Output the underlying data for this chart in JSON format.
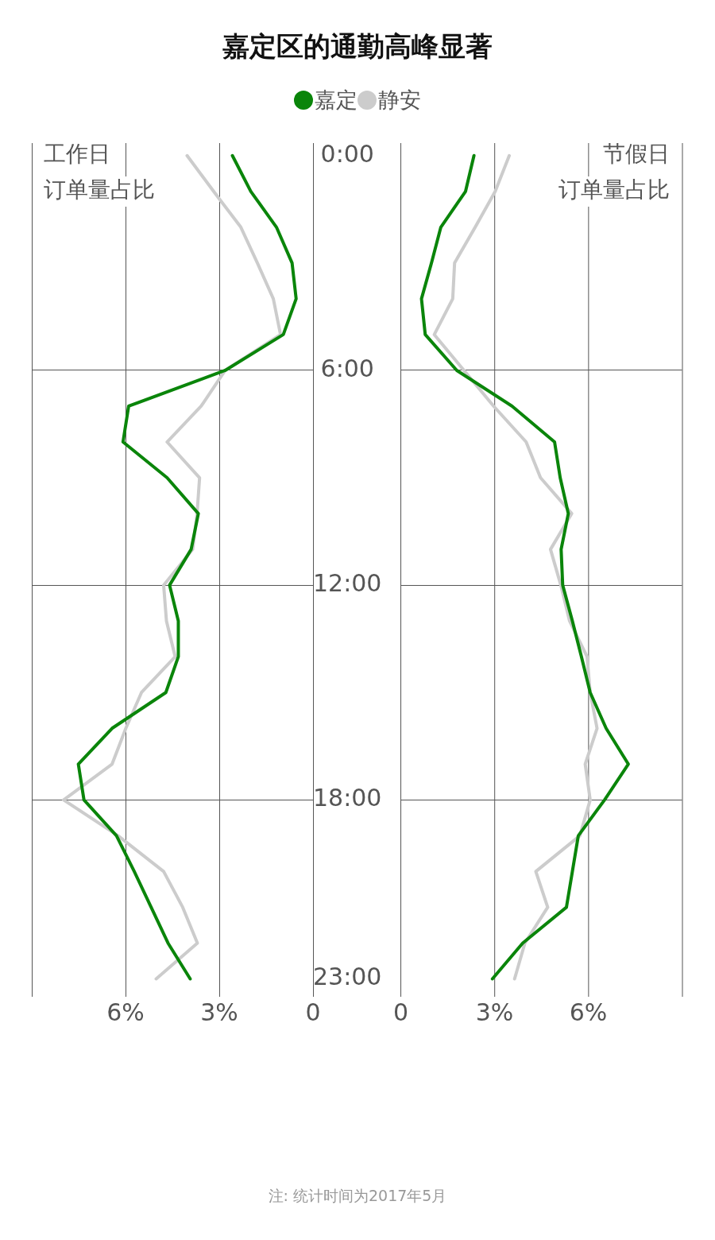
{
  "chart_data": [
    {
      "type": "line",
      "title": "嘉定区的通勤高峰显著",
      "legend": "top",
      "orientation": "horizontal",
      "grid": true,
      "marker": "none",
      "x": [
        0,
        1,
        2,
        3,
        4,
        5,
        6,
        7,
        8,
        9,
        10,
        11,
        12,
        13,
        14,
        15,
        16,
        17,
        18,
        19,
        20,
        21,
        22,
        23
      ],
      "series": [
        {
          "name": "嘉定",
          "color": "#0a850a",
          "values": [
            2.58,
            1.99,
            1.17,
            0.67,
            0.54,
            0.95,
            2.81,
            5.9,
            6.08,
            4.67,
            3.67,
            3.9,
            4.59,
            4.31,
            4.31,
            4.71,
            6.43,
            7.51,
            7.33,
            6.29,
            5.72,
            5.18,
            4.64,
            3.93
          ]
        },
        {
          "name": "静安",
          "color": "#cccccc",
          "values": [
            4.03,
            3.18,
            2.31,
            1.78,
            1.27,
            1.04,
            2.81,
            3.58,
            4.67,
            3.63,
            3.71,
            3.85,
            4.78,
            4.69,
            4.41,
            5.49,
            5.99,
            6.43,
            7.98,
            6.24,
            4.78,
            4.17,
            3.7,
            5.02
          ]
        }
      ],
      "xlim": [
        9,
        0
      ],
      "xticks": [
        {
          "value": 9,
          "label": null
        },
        {
          "value": 6,
          "label": "6%"
        },
        {
          "value": 3,
          "label": "3%"
        },
        {
          "value": 0,
          "label": "0"
        }
      ],
      "ylim": [
        23.5,
        -0.35
      ],
      "yticks": [
        {
          "value": 0,
          "label": "0:00"
        },
        {
          "value": 6,
          "label": "6:00"
        },
        {
          "value": 12,
          "label": "12:00"
        },
        {
          "value": 18,
          "label": "18:00"
        },
        {
          "value": 23,
          "label": "23:00"
        }
      ],
      "annotations": [
        "工作日",
        "订单量占比"
      ]
    },
    {
      "type": "line",
      "orientation": "horizontal",
      "grid": true,
      "marker": "none",
      "tick_labels": "x",
      "x": [
        0,
        1,
        2,
        3,
        4,
        5,
        6,
        7,
        8,
        9,
        10,
        11,
        12,
        13,
        14,
        15,
        16,
        17,
        18,
        19,
        20,
        21,
        22,
        23
      ],
      "series": [
        {
          "color": "#0a850a",
          "values": [
            2.34,
            2.07,
            1.28,
            0.98,
            0.66,
            0.78,
            1.79,
            3.56,
            4.92,
            5.1,
            5.36,
            5.13,
            5.18,
            5.49,
            5.78,
            6.06,
            6.57,
            7.28,
            6.52,
            5.68,
            5.49,
            5.3,
            3.9,
            2.93
          ]
        },
        {
          "color": "#cccccc",
          "values": [
            3.47,
            3.02,
            2.38,
            1.72,
            1.66,
            1.07,
            2.02,
            2.97,
            4.01,
            4.47,
            5.47,
            4.79,
            5.12,
            5.4,
            5.96,
            6.06,
            6.28,
            5.9,
            6.06,
            5.73,
            4.32,
            4.7,
            3.97,
            3.64
          ]
        }
      ],
      "xlim": [
        0,
        9
      ],
      "xticks": [
        {
          "value": 0,
          "label": "0"
        },
        {
          "value": 3,
          "label": "3%"
        },
        {
          "value": 6,
          "label": "6%"
        },
        {
          "value": 9,
          "label": null
        }
      ],
      "ylim": [
        23.5,
        -0.35
      ],
      "yticks": [
        {
          "value": 0,
          "label": null
        },
        {
          "value": 6,
          "label": null
        },
        {
          "value": 12,
          "label": null
        },
        {
          "value": 18,
          "label": null
        },
        {
          "value": 23,
          "label": null
        }
      ],
      "annotations": [
        "节假日",
        "订单量占比"
      ]
    },
    {
      "type": "other",
      "annotations": [
        "注: 统计时间为2017年5月"
      ]
    }
  ]
}
